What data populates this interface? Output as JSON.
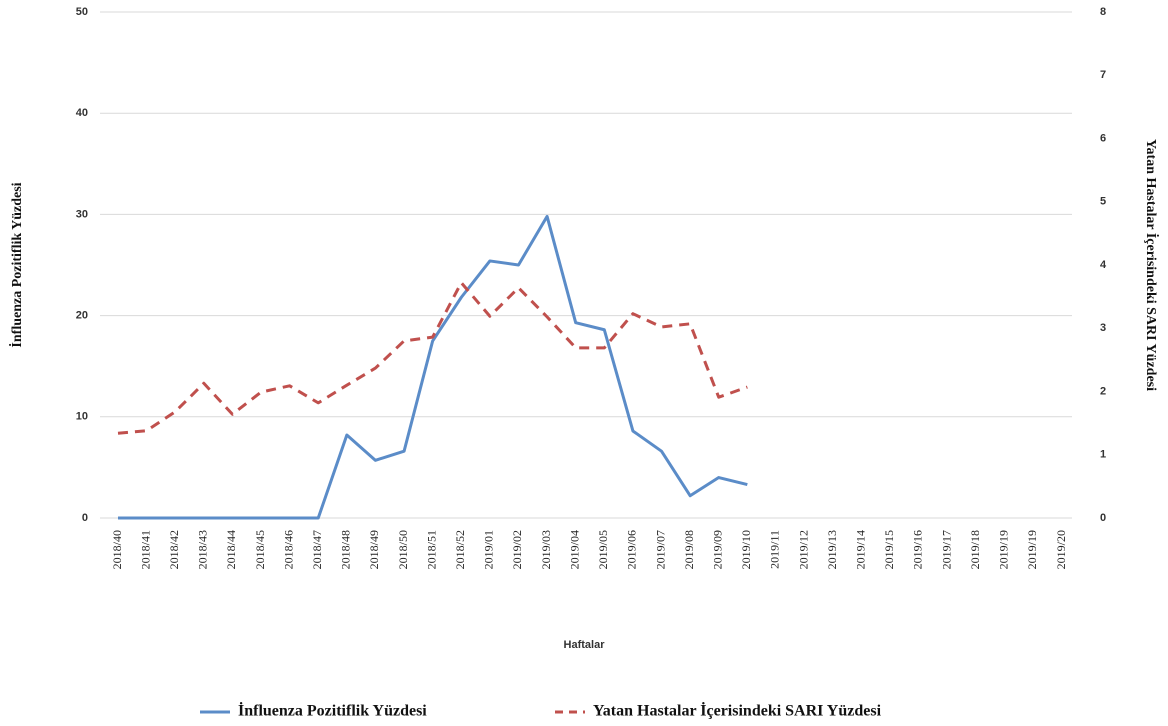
{
  "chart_data": {
    "type": "line",
    "y_label": "İnfluenza Pozitiflik Yüzdesi",
    "y2_label": "Yatan Hastalar İçerisindeki SARI Yüzdesi",
    "x_label": "Haftalar",
    "categories": [
      "2018/40",
      "2018/41",
      "2018/42",
      "2018/43",
      "2018/44",
      "2018/45",
      "2018/46",
      "2018/47",
      "2018/48",
      "2018/49",
      "2018/50",
      "2018/51",
      "2018/52",
      "2019/01",
      "2019/02",
      "2019/03",
      "2019/04",
      "2019/05",
      "2019/06",
      "2019/07",
      "2019/08",
      "2019/09",
      "2019/10",
      "2019/11",
      "2019/12",
      "2019/13",
      "2019/14",
      "2019/15",
      "2019/16",
      "2019/17",
      "2019/18",
      "2019/19",
      "2019/19",
      "2019/20"
    ],
    "series": [
      {
        "name": "İnfluenza Pozitiflik Yüzdesi",
        "color": "#5b8cc8",
        "line_style": "solid",
        "axis": "y",
        "values": [
          0,
          0,
          0,
          0,
          0,
          0,
          0,
          0,
          8.2,
          5.7,
          6.6,
          17.5,
          21.8,
          25.4,
          25.0,
          29.8,
          19.3,
          18.6,
          8.6,
          6.6,
          2.2,
          4.0,
          3.3,
          null,
          null,
          null,
          null,
          null,
          null,
          null,
          null,
          null,
          null,
          null
        ]
      },
      {
        "name": "Yatan Hastalar İçerisindeki SARI Yüzdesi",
        "color": "#c0504d",
        "line_style": "dashed",
        "axis": "y2",
        "values": [
          1.34,
          1.38,
          1.68,
          2.13,
          1.64,
          1.99,
          2.09,
          1.82,
          2.1,
          2.37,
          2.8,
          2.86,
          3.72,
          3.19,
          3.64,
          3.18,
          2.69,
          2.69,
          3.23,
          3.02,
          3.07,
          1.91,
          2.07,
          null,
          null,
          null,
          null,
          null,
          null,
          null,
          null,
          null,
          null,
          null
        ]
      }
    ],
    "ylim": [
      0,
      50
    ],
    "yticks": [
      0,
      10,
      20,
      30,
      40,
      50
    ],
    "y2lim": [
      0,
      8
    ],
    "y2ticks": [
      0,
      1,
      2,
      3,
      4,
      5,
      6,
      7,
      8
    ],
    "grid": true,
    "legend": "bottom"
  }
}
